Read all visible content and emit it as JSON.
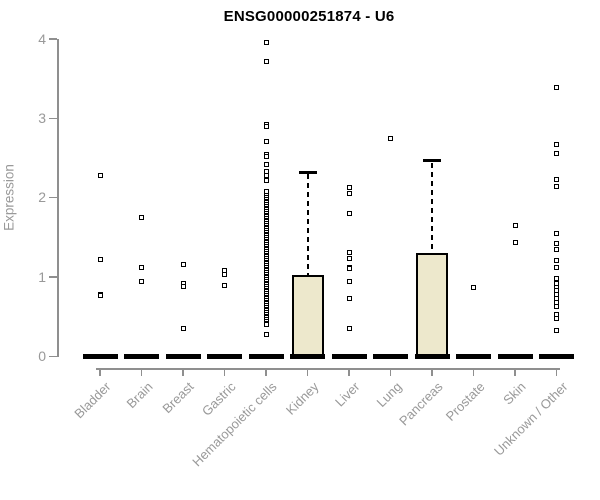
{
  "chart_data": {
    "type": "boxplot",
    "title": "ENSG00000251874 - U6",
    "xlabel": "",
    "ylabel": "Expression",
    "ylim": [
      0,
      4
    ],
    "yticks": [
      0,
      1,
      2,
      3,
      4
    ],
    "grid": false,
    "legend": "none",
    "categories": [
      "Bladder",
      "Brain",
      "Breast",
      "Gastric",
      "Hematopoietic cells",
      "Kidney",
      "Liver",
      "Lung",
      "Pancreas",
      "Prostate",
      "Skin",
      "Unknown / Other"
    ],
    "series": [
      {
        "category": "Bladder",
        "median": 0,
        "q1": 0,
        "q3": 0,
        "whisker_low": 0,
        "whisker_high": 0,
        "outliers": [
          2.28,
          1.22,
          0.78,
          0.76
        ]
      },
      {
        "category": "Brain",
        "median": 0,
        "q1": 0,
        "q3": 0,
        "whisker_low": 0,
        "whisker_high": 0,
        "outliers": [
          1.75,
          1.11,
          0.94
        ]
      },
      {
        "category": "Breast",
        "median": 0,
        "q1": 0,
        "q3": 0,
        "whisker_low": 0,
        "whisker_high": 0,
        "outliers": [
          1.15,
          0.91,
          0.88,
          0.35
        ]
      },
      {
        "category": "Gastric",
        "median": 0,
        "q1": 0,
        "q3": 0,
        "whisker_low": 0,
        "whisker_high": 0,
        "outliers": [
          1.08,
          1.03,
          0.89
        ]
      },
      {
        "category": "Hematopoietic cells",
        "median": 0,
        "q1": 0,
        "q3": 0,
        "whisker_low": 0,
        "whisker_high": 0,
        "outliers": [
          3.95,
          3.71,
          2.92,
          2.89,
          2.71,
          2.54,
          2.51,
          2.42,
          2.33,
          2.27,
          2.21,
          2.08,
          0.27
        ],
        "dense_stack": {
          "min": 0.39,
          "max": 2.02,
          "note": "many overlapping sample points"
        }
      },
      {
        "category": "Kidney",
        "median": 0,
        "q1": 0,
        "q3": 1.02,
        "whisker_low": 0,
        "whisker_high": 2.32,
        "outliers": []
      },
      {
        "category": "Liver",
        "median": 0,
        "q1": 0,
        "q3": 0,
        "whisker_low": 0,
        "whisker_high": 0,
        "outliers": [
          2.12,
          2.05,
          1.8,
          1.3,
          1.23,
          1.12,
          1.1,
          0.94,
          0.73,
          0.35
        ]
      },
      {
        "category": "Lung",
        "median": 0,
        "q1": 0,
        "q3": 0,
        "whisker_low": 0,
        "whisker_high": 0,
        "outliers": [
          2.74
        ]
      },
      {
        "category": "Pancreas",
        "median": 0,
        "q1": 0,
        "q3": 1.3,
        "whisker_low": 0,
        "whisker_high": 2.46,
        "outliers": []
      },
      {
        "category": "Prostate",
        "median": 0,
        "q1": 0,
        "q3": 0,
        "whisker_low": 0,
        "whisker_high": 0,
        "outliers": [
          0.86
        ]
      },
      {
        "category": "Skin",
        "median": 0,
        "q1": 0,
        "q3": 0,
        "whisker_low": 0,
        "whisker_high": 0,
        "outliers": [
          1.65,
          1.43
        ]
      },
      {
        "category": "Unknown / Other",
        "median": 0,
        "q1": 0,
        "q3": 0,
        "whisker_low": 0,
        "whisker_high": 0,
        "outliers": [
          3.38,
          2.67,
          2.55,
          2.23,
          2.14,
          1.55,
          1.42,
          1.34,
          1.2,
          1.12,
          0.98,
          0.92,
          0.86,
          0.82,
          0.78,
          0.72,
          0.68,
          0.63,
          0.52,
          0.47,
          0.32
        ]
      }
    ],
    "style": {
      "box_fill": "#EDE8CC",
      "box_border": "#000000",
      "point_color": "#000000",
      "axis_color": "#8F8F8F",
      "text_color": "#999999",
      "title_color": "#000000",
      "background": "#FFFFFF"
    }
  }
}
